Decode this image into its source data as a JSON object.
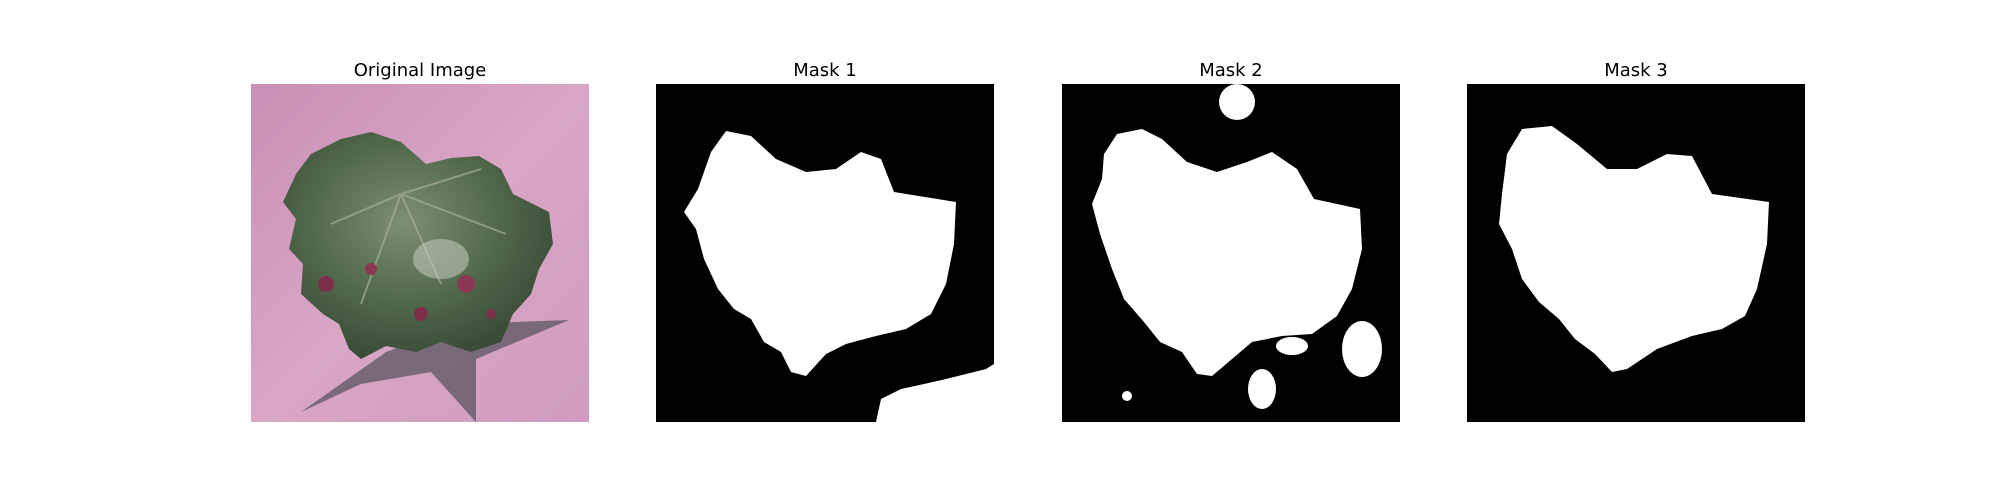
{
  "figure": {
    "panels": [
      {
        "title": "Original Image",
        "kind": "photo",
        "subject": "leaf-photo"
      },
      {
        "title": "Mask 1",
        "kind": "mask"
      },
      {
        "title": "Mask 2",
        "kind": "mask"
      },
      {
        "title": "Mask 3",
        "kind": "mask"
      }
    ]
  },
  "colors": {
    "background": "#ffffff",
    "mask_bg": "#000000",
    "mask_fg": "#ffffff",
    "pink_bg": "#d9a6c6",
    "leaf_green": "#50684a",
    "shadow": "#5a5560"
  }
}
